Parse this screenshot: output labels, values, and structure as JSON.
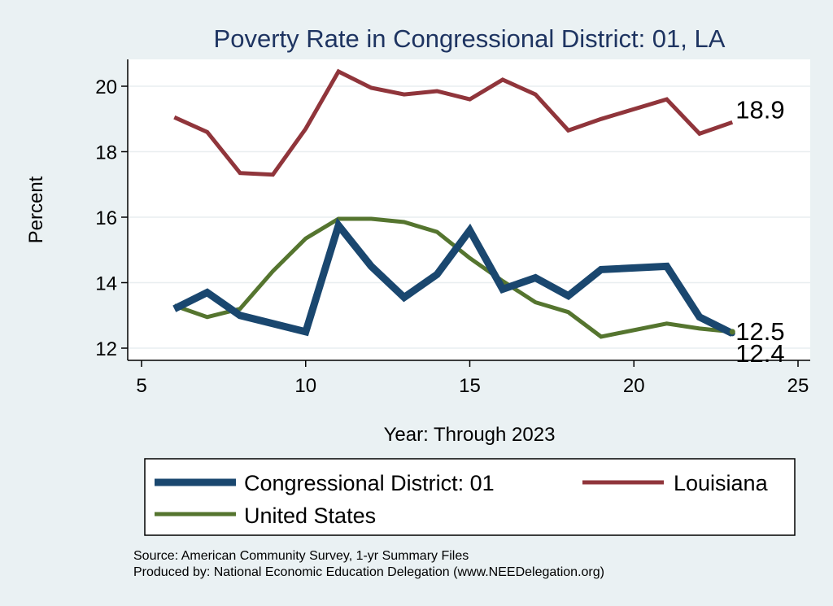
{
  "chart_data": {
    "type": "line",
    "title": "Poverty Rate in Congressional District:  01, LA",
    "xlabel": "Year: Through 2023",
    "ylabel": "Percent",
    "xlim": [
      5,
      25
    ],
    "ylim": [
      12,
      20.8
    ],
    "xticks": [
      5,
      10,
      15,
      20,
      25
    ],
    "yticks": [
      12,
      14,
      16,
      18,
      20
    ],
    "grid": true,
    "legend_position": "bottom",
    "series": [
      {
        "name": "Congressional District:  01",
        "color": "#1a476f",
        "x": [
          6,
          7,
          8,
          10,
          11,
          12,
          13,
          14,
          15,
          16,
          17,
          18,
          19,
          21,
          22,
          23
        ],
        "y": [
          13.2,
          13.7,
          13.0,
          12.5,
          15.75,
          14.5,
          13.55,
          14.25,
          15.6,
          13.8,
          14.15,
          13.6,
          14.4,
          14.5,
          12.95,
          12.45
        ],
        "end_label": "12.4"
      },
      {
        "name": "Louisiana",
        "color": "#90353b",
        "x": [
          6,
          7,
          8,
          9,
          10,
          11,
          12,
          13,
          14,
          15,
          16,
          17,
          18,
          19,
          21,
          22,
          23
        ],
        "y": [
          19.05,
          18.6,
          17.35,
          17.3,
          18.7,
          20.45,
          19.95,
          19.75,
          19.85,
          19.6,
          20.2,
          19.75,
          18.65,
          19.0,
          19.6,
          18.55,
          18.9
        ],
        "end_label": "18.9"
      },
      {
        "name": "United States",
        "color": "#55752f",
        "x": [
          6,
          7,
          8,
          9,
          10,
          11,
          12,
          13,
          14,
          15,
          16,
          17,
          18,
          19,
          21,
          22,
          23
        ],
        "y": [
          13.3,
          12.95,
          13.2,
          14.35,
          15.35,
          15.95,
          15.95,
          15.85,
          15.55,
          14.75,
          14.05,
          13.4,
          13.1,
          12.35,
          12.75,
          12.6,
          12.5
        ],
        "end_label": "12.5"
      }
    ]
  },
  "source_line_1": "Source: American Community Survey, 1-yr Summary Files",
  "source_line_2": "Produced by: National Economic Education Delegation (www.NEEDelegation.org)"
}
